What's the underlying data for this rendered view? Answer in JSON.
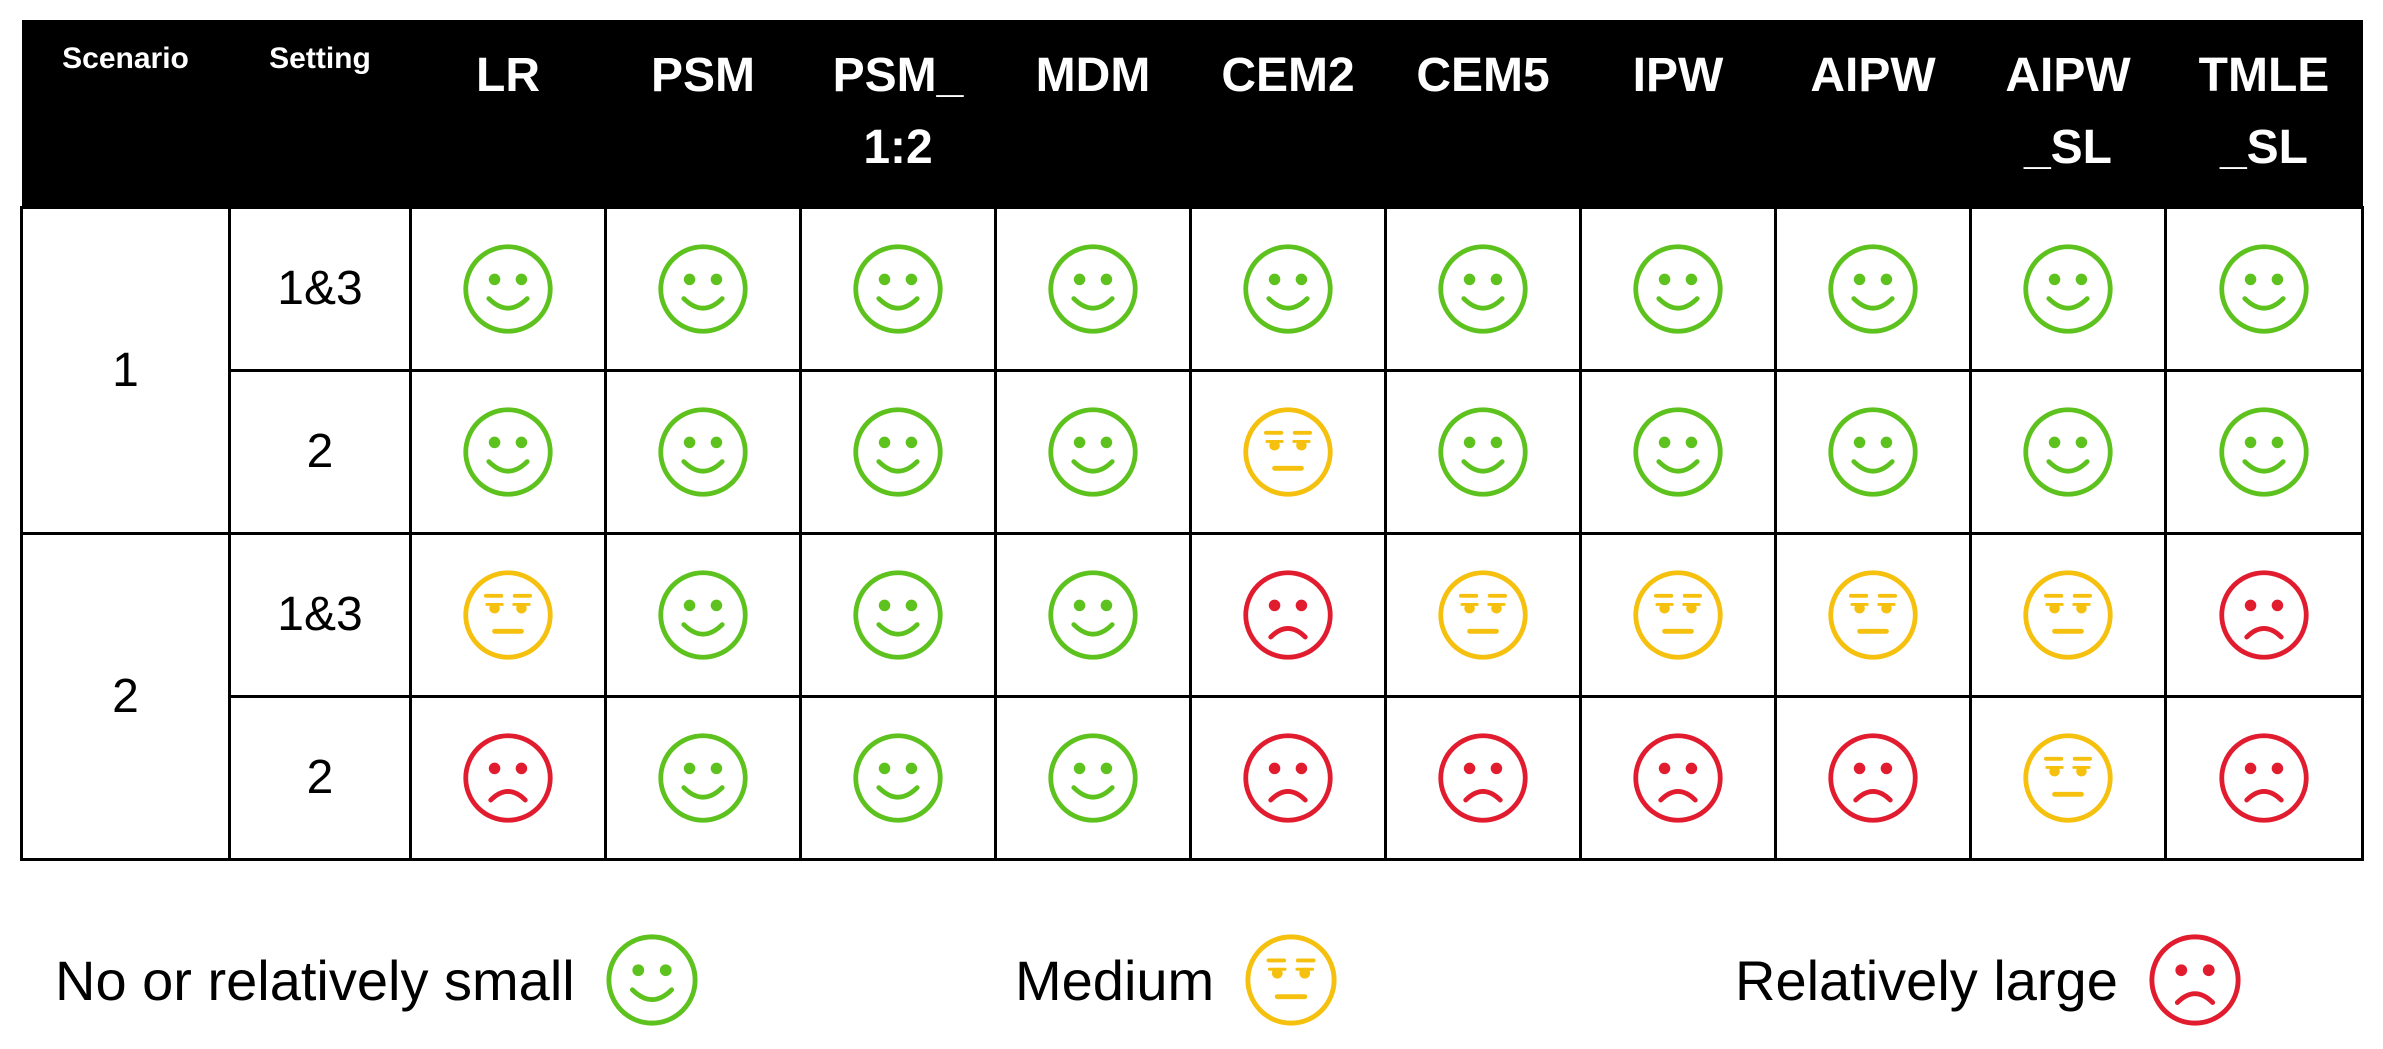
{
  "colors": {
    "green": "#5dc21e",
    "yellow": "#f5c00e",
    "red": "#e21c2f",
    "header_bg": "#000000"
  },
  "icons": {
    "green": "smiley-face-icon",
    "yellow": "neutral-face-icon",
    "red": "frowning-face-icon"
  },
  "header": {
    "scenario": "Scenario",
    "setting": "Setting",
    "methods": [
      "LR",
      "PSM",
      "PSM_\n1:2",
      "MDM",
      "CEM2",
      "CEM5",
      "IPW",
      "AIPW",
      "AIPW\n_SL",
      "TMLE\n_SL"
    ]
  },
  "scenarios": [
    {
      "label": "1",
      "settings": [
        {
          "label": "1&3",
          "ratings": [
            "green",
            "green",
            "green",
            "green",
            "green",
            "green",
            "green",
            "green",
            "green",
            "green"
          ]
        },
        {
          "label": "2",
          "ratings": [
            "green",
            "green",
            "green",
            "green",
            "yellow",
            "green",
            "green",
            "green",
            "green",
            "green"
          ]
        }
      ]
    },
    {
      "label": "2",
      "settings": [
        {
          "label": "1&3",
          "ratings": [
            "yellow",
            "green",
            "green",
            "green",
            "red",
            "yellow",
            "yellow",
            "yellow",
            "yellow",
            "red"
          ]
        },
        {
          "label": "2",
          "ratings": [
            "red",
            "green",
            "green",
            "green",
            "red",
            "red",
            "red",
            "red",
            "yellow",
            "red"
          ]
        }
      ]
    }
  ],
  "legend": [
    {
      "text": "No or relatively small",
      "rating": "green"
    },
    {
      "text": "Medium",
      "rating": "yellow"
    },
    {
      "text": "Relatively large",
      "rating": "red"
    }
  ]
}
